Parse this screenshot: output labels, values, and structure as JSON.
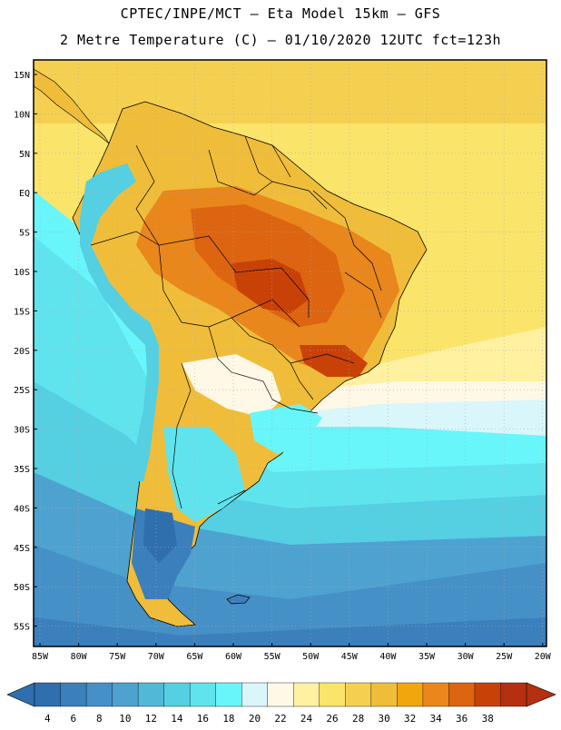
{
  "header": {
    "line1": "CPTEC/INPE/MCT –  Eta Model 15km – GFS",
    "line2": "2 Metre Temperature (C) – 01/10/2020 12UTC fct=123h"
  },
  "axes": {
    "lat_labels": [
      "15N",
      "10N",
      "5N",
      "EQ",
      "5S",
      "10S",
      "15S",
      "20S",
      "25S",
      "30S",
      "35S",
      "40S",
      "45S",
      "50S",
      "55S"
    ],
    "lon_labels": [
      "85W",
      "80W",
      "75W",
      "70W",
      "65W",
      "60W",
      "55W",
      "50W",
      "45W",
      "40W",
      "35W",
      "30W",
      "25W",
      "20W"
    ]
  },
  "colorbar": {
    "labels": [
      "4",
      "6",
      "8",
      "10",
      "12",
      "14",
      "16",
      "18",
      "20",
      "22",
      "24",
      "26",
      "28",
      "30",
      "32",
      "34",
      "36",
      "38"
    ],
    "colors": [
      "#2f6fae",
      "#3b7fbc",
      "#4590c6",
      "#4ea2d0",
      "#52b8d8",
      "#55cfe2",
      "#5fe4ee",
      "#68f6fa",
      "#d9f6fb",
      "#fff8e6",
      "#fff1a0",
      "#fbe46a",
      "#f5d050",
      "#efbd3a",
      "#f2a60e",
      "#e9861c",
      "#dd6410",
      "#c84208",
      "#b53010"
    ]
  },
  "colors": {
    "frame": "#000000",
    "grid": "#aaaaaa",
    "country_line": "#000000"
  }
}
